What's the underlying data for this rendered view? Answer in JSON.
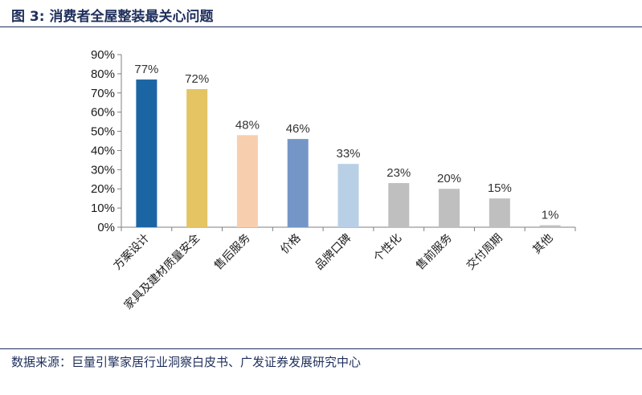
{
  "figure": {
    "title": "图 3: 消费者全屋整装最关心问题",
    "source": "数据来源：巨量引擎家居行业洞察白皮书、广发证券发展研究中心"
  },
  "chart_data": {
    "type": "bar",
    "categories": [
      "方案设计",
      "家具及建材质量安全",
      "售后服务",
      "价格",
      "品牌口碑",
      "个性化",
      "售前服务",
      "交付周期",
      "其他"
    ],
    "values": [
      77,
      72,
      48,
      46,
      33,
      23,
      20,
      15,
      1
    ],
    "data_labels": [
      "77%",
      "72%",
      "48%",
      "46%",
      "33%",
      "23%",
      "20%",
      "15%",
      "1%"
    ],
    "bar_colors": [
      "#1b65a5",
      "#e4c463",
      "#f8cfae",
      "#7496c7",
      "#b9cfe6",
      "#bfbfbf",
      "#bfbfbf",
      "#bfbfbf",
      "#bfbfbf"
    ],
    "ylim": [
      0,
      90
    ],
    "yticks": [
      0,
      10,
      20,
      30,
      40,
      50,
      60,
      70,
      80,
      90
    ],
    "ytick_labels": [
      "0%",
      "10%",
      "20%",
      "30%",
      "40%",
      "50%",
      "60%",
      "70%",
      "80%",
      "90%"
    ],
    "xlabel": "",
    "ylabel": "",
    "grid": false,
    "legend": false
  }
}
